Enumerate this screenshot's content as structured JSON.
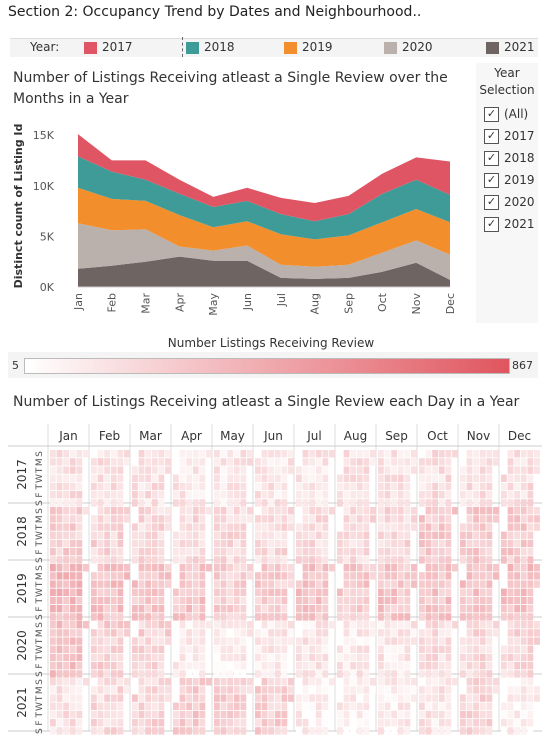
{
  "section_title": "Section 2: Occupancy Trend by Dates and Neighbourhood..",
  "legend": {
    "label": "Year:",
    "items": [
      {
        "name": "2017",
        "color": "#e05563"
      },
      {
        "name": "2018",
        "color": "#3f9b98"
      },
      {
        "name": "2019",
        "color": "#f28e2c"
      },
      {
        "name": "2020",
        "color": "#bab0ac"
      },
      {
        "name": "2021",
        "color": "#6e6562"
      }
    ]
  },
  "year_selection": {
    "title": "Year Selection",
    "options": [
      {
        "label": "(All)",
        "checked": true
      },
      {
        "label": "2017",
        "checked": true
      },
      {
        "label": "2018",
        "checked": true
      },
      {
        "label": "2019",
        "checked": true
      },
      {
        "label": "2020",
        "checked": true
      },
      {
        "label": "2021",
        "checked": true
      }
    ]
  },
  "chart_data": [
    {
      "type": "area",
      "stacked": true,
      "title": "Number of Listings Receiving atleast a Single Review over the Months in a Year",
      "ylabel": "Distinct count of Listing Id",
      "xlabel": "",
      "x": [
        "Jan",
        "Feb",
        "Mar",
        "Apr",
        "May",
        "Jun",
        "Jul",
        "Aug",
        "Sep",
        "Oct",
        "Nov",
        "Dec"
      ],
      "ylim": [
        0,
        16000
      ],
      "yticks": [
        {
          "value": 0,
          "label": "0K"
        },
        {
          "value": 5000,
          "label": "5K"
        },
        {
          "value": 10000,
          "label": "10K"
        },
        {
          "value": 15000,
          "label": "15K"
        }
      ],
      "series": [
        {
          "name": "2021",
          "color": "#6e6562",
          "values": [
            1800,
            2100,
            2500,
            3000,
            2600,
            2600,
            900,
            800,
            900,
            1500,
            2400,
            700
          ]
        },
        {
          "name": "2020",
          "color": "#bab0ac",
          "values": [
            4500,
            3500,
            3200,
            1000,
            1000,
            1500,
            1300,
            1200,
            1300,
            1900,
            2200,
            2500
          ]
        },
        {
          "name": "2019",
          "color": "#f28e2c",
          "values": [
            3500,
            3100,
            2800,
            3100,
            2300,
            2400,
            3000,
            2700,
            2900,
            3000,
            3100,
            3200
          ]
        },
        {
          "name": "2018",
          "color": "#3f9b98",
          "values": [
            3100,
            2700,
            2100,
            2100,
            2000,
            2000,
            2000,
            1800,
            2100,
            2800,
            2900,
            2700
          ]
        },
        {
          "name": "2017",
          "color": "#e05563",
          "values": [
            2200,
            1100,
            1900,
            1400,
            1000,
            1300,
            1600,
            1800,
            1800,
            2000,
            2200,
            3300
          ]
        }
      ],
      "legend": "top",
      "grid": false
    },
    {
      "type": "heatmap",
      "title": "Number of Listings Receiving atleast a Single Review each Day in a Year",
      "columns": [
        "Jan",
        "Feb",
        "Mar",
        "Apr",
        "May",
        "Jun",
        "Jul",
        "Aug",
        "Sep",
        "Oct",
        "Nov",
        "Dec"
      ],
      "rows": [
        "2017",
        "2018",
        "2019",
        "2020",
        "2021"
      ],
      "weekday_labels": [
        "S",
        "M",
        "T",
        "W",
        "T",
        "F",
        "S"
      ],
      "color_legend": {
        "title": "Number Listings Receiving Review",
        "min": 5,
        "max": 867,
        "min_label": "5",
        "max_label": "867",
        "min_color": "#ffffff",
        "max_color": "#e0555e"
      },
      "mean_intensity": [
        [
          0.18,
          0.18,
          0.18,
          0.16,
          0.14,
          0.15,
          0.16,
          0.17,
          0.17,
          0.19,
          0.19,
          0.2
        ],
        [
          0.28,
          0.25,
          0.22,
          0.22,
          0.21,
          0.21,
          0.21,
          0.2,
          0.23,
          0.3,
          0.31,
          0.3
        ],
        [
          0.4,
          0.36,
          0.33,
          0.34,
          0.27,
          0.29,
          0.34,
          0.31,
          0.33,
          0.34,
          0.35,
          0.36
        ],
        [
          0.35,
          0.28,
          0.26,
          0.1,
          0.1,
          0.14,
          0.14,
          0.13,
          0.14,
          0.2,
          0.22,
          0.24
        ],
        [
          0.18,
          0.21,
          0.24,
          0.3,
          0.27,
          0.27,
          0.1,
          0.09,
          0.1,
          0.15,
          0.24,
          0.08
        ]
      ]
    }
  ]
}
